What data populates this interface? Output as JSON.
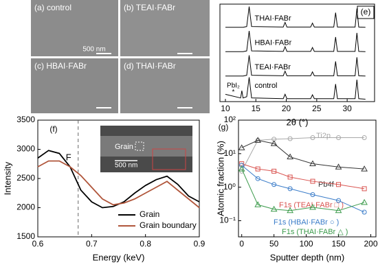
{
  "images": [
    {
      "label": "(a) control",
      "scale": "500 nm"
    },
    {
      "label": "(b) TEAI·FABr"
    },
    {
      "label": "(c) HBAI·FABr"
    },
    {
      "label": "(d) THAI·FABr"
    }
  ],
  "chart_data": [
    {
      "type": "line",
      "panel": "(e)",
      "x_label": "2θ (°)",
      "xlim": [
        9.1,
        34.5
      ],
      "xticks": [
        10,
        15,
        20,
        25,
        30
      ],
      "ylim": [
        0,
        4
      ],
      "x": [
        10,
        12.5,
        12.7,
        12.9,
        13.5,
        13.9,
        14.3,
        19.5,
        19.8,
        20.1,
        24,
        24.3,
        24.6,
        27.8,
        28.1,
        28.4,
        31.3,
        31.6,
        31.9,
        33
      ],
      "series": [
        {
          "name": "THAI·FABr",
          "color": "#000000",
          "values": [
            3.05,
            3.05,
            3.05,
            3.05,
            3.08,
            3.9,
            3.08,
            3.06,
            3.25,
            3.06,
            3.06,
            3.22,
            3.06,
            3.06,
            3.65,
            3.06,
            3.06,
            3.82,
            3.06,
            3.05
          ]
        },
        {
          "name": "HBAI·FABr",
          "color": "#000000",
          "values": [
            2.05,
            2.05,
            2.05,
            2.05,
            2.08,
            2.9,
            2.08,
            2.06,
            2.25,
            2.06,
            2.06,
            2.22,
            2.06,
            2.06,
            2.65,
            2.06,
            2.06,
            2.82,
            2.06,
            2.05
          ]
        },
        {
          "name": "TEAI·FABr",
          "color": "#000000",
          "values": [
            1.05,
            1.05,
            1.05,
            1.05,
            1.08,
            1.9,
            1.08,
            1.06,
            1.25,
            1.06,
            1.06,
            1.22,
            1.06,
            1.06,
            1.65,
            1.06,
            1.06,
            1.82,
            1.06,
            1.05
          ]
        },
        {
          "name": "control",
          "color": "#000000",
          "values": [
            0.3,
            0.15,
            0.45,
            0.15,
            0.2,
            1.0,
            0.15,
            0.12,
            0.3,
            0.12,
            0.12,
            0.28,
            0.12,
            0.12,
            0.72,
            0.12,
            0.12,
            0.9,
            0.12,
            0.1
          ]
        }
      ],
      "annotations": [
        "PbI₂",
        "*"
      ]
    },
    {
      "type": "line",
      "panel": "(f)",
      "x_label": "Energy (keV)",
      "y_label": "Intensity",
      "xlim": [
        0.6,
        0.9
      ],
      "xticks": [
        0.6,
        0.7,
        0.8,
        0.9
      ],
      "ylim": [
        1500,
        3500
      ],
      "yticks": [
        1500,
        2000,
        2500,
        3000,
        3500
      ],
      "x": [
        0.6,
        0.62,
        0.64,
        0.66,
        0.68,
        0.7,
        0.72,
        0.74,
        0.76,
        0.78,
        0.8,
        0.82,
        0.84,
        0.86,
        0.88,
        0.9
      ],
      "series": [
        {
          "name": "Grain",
          "color": "#000000",
          "values": [
            2850,
            2980,
            2930,
            2700,
            2300,
            2100,
            2000,
            2020,
            2100,
            2250,
            2380,
            2480,
            2540,
            2400,
            2200,
            2100
          ]
        },
        {
          "name": "Grain boundary",
          "color": "#b0553a",
          "values": [
            2700,
            2800,
            2800,
            2700,
            2550,
            2350,
            2150,
            2050,
            2080,
            2150,
            2250,
            2350,
            2450,
            2300,
            2150,
            2000
          ]
        }
      ],
      "vline": 0.675,
      "vline_label": "F",
      "inset": [
        "Grain",
        "500 nm"
      ],
      "legend": "lower right"
    },
    {
      "type": "line",
      "panel": "(g)",
      "x_label": "Sputter depth (nm)",
      "y_label": "Atomic fraction (%)",
      "log_y": true,
      "xlim": [
        -5,
        208
      ],
      "xticks": [
        0,
        50,
        100,
        150,
        200
      ],
      "ylim": [
        0.033,
        100
      ],
      "yticks": [
        {
          "value": 0.1,
          "label": "10⁻¹"
        },
        {
          "value": 1,
          "label": "10⁰"
        },
        {
          "value": 10,
          "label": "10¹"
        },
        {
          "value": 100,
          "label": "10²"
        }
      ],
      "x": [
        0,
        25,
        50,
        75,
        110,
        150,
        190
      ],
      "series": [
        {
          "name": "Ti2p",
          "color": "#a8a8a8",
          "marker": "circle",
          "values": [
            3,
            25,
            27,
            28,
            30,
            30,
            30
          ]
        },
        {
          "name": "Pb4f",
          "color": "#333333",
          "marker": "triangle",
          "values": [
            15,
            25,
            20,
            8,
            5,
            4,
            3.5
          ]
        },
        {
          "name": "F1s (TEAI·FABr  □ )",
          "color": "#d9534f",
          "marker": "square",
          "values": [
            5,
            3.5,
            3,
            2,
            1.5,
            1.2,
            0.9
          ]
        },
        {
          "name": "F1s (HBAI·FABr  ○ )",
          "color": "#3a7cc9",
          "marker": "circle",
          "values": [
            4.5,
            1.8,
            1.2,
            0.9,
            0.6,
            0.4,
            0.18
          ]
        },
        {
          "name": "F1s (THAI·FABr  △ )",
          "color": "#3a9a4a",
          "marker": "triangle",
          "values": [
            3.5,
            0.3,
            0.22,
            0.2,
            0.25,
            0.2,
            0.35
          ]
        }
      ]
    }
  ]
}
